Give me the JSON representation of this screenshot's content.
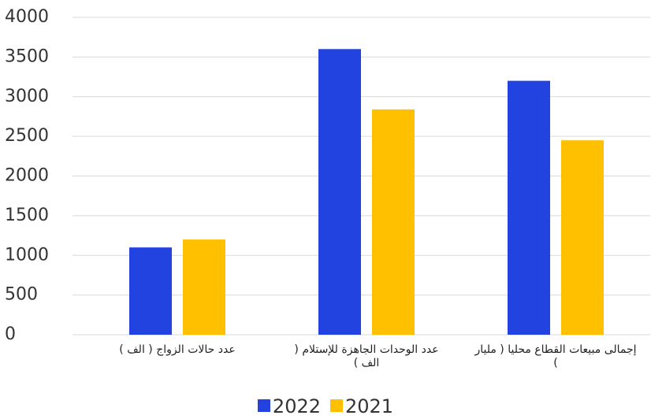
{
  "chart_data": {
    "type": "bar",
    "categories": [
      "عدد حالات الزواج ( الف )",
      "عدد الوحدات الجاهزة للإستلام ( الف )",
      "إجمالى مبيعات القطاع محليا ( مليار )"
    ],
    "series": [
      {
        "name": "2022",
        "color": "#2243e0",
        "values": [
          1100,
          3600,
          3200
        ]
      },
      {
        "name": "2021",
        "color": "#ffc000",
        "values": [
          1200,
          2840,
          2450
        ]
      }
    ],
    "ylim": [
      0,
      4000
    ],
    "yticks": [
      0,
      500,
      1000,
      1500,
      2000,
      2500,
      3000,
      3500,
      4000
    ],
    "grid": true
  }
}
